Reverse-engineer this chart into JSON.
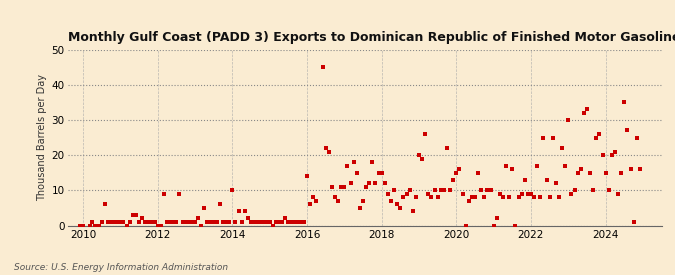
{
  "title": "Monthly Gulf Coast (PADD 3) Exports to Dominican Republic of Finished Motor Gasoline",
  "ylabel": "Thousand Barrels per Day",
  "source": "Source: U.S. Energy Information Administration",
  "background_color": "#faecd2",
  "marker_color": "#cc0000",
  "xlim_start": 2009.58,
  "xlim_end": 2025.5,
  "ylim": [
    0,
    50
  ],
  "yticks": [
    0,
    10,
    20,
    30,
    40,
    50
  ],
  "xticks": [
    2010,
    2012,
    2014,
    2016,
    2018,
    2020,
    2022,
    2024
  ],
  "data": [
    [
      2009.92,
      0.0
    ],
    [
      2010.0,
      0.0
    ],
    [
      2010.17,
      0.0
    ],
    [
      2010.25,
      1.0
    ],
    [
      2010.33,
      0.0
    ],
    [
      2010.42,
      0.0
    ],
    [
      2010.5,
      1.0
    ],
    [
      2010.58,
      6.0
    ],
    [
      2010.67,
      1.0
    ],
    [
      2010.75,
      1.0
    ],
    [
      2010.83,
      1.0
    ],
    [
      2010.92,
      1.0
    ],
    [
      2011.0,
      1.0
    ],
    [
      2011.08,
      1.0
    ],
    [
      2011.17,
      0.0
    ],
    [
      2011.25,
      1.0
    ],
    [
      2011.33,
      3.0
    ],
    [
      2011.42,
      3.0
    ],
    [
      2011.5,
      1.0
    ],
    [
      2011.58,
      2.0
    ],
    [
      2011.67,
      1.0
    ],
    [
      2011.75,
      1.0
    ],
    [
      2011.83,
      1.0
    ],
    [
      2011.92,
      1.0
    ],
    [
      2012.0,
      0.0
    ],
    [
      2012.08,
      0.0
    ],
    [
      2012.17,
      9.0
    ],
    [
      2012.25,
      1.0
    ],
    [
      2012.33,
      1.0
    ],
    [
      2012.42,
      1.0
    ],
    [
      2012.5,
      1.0
    ],
    [
      2012.58,
      9.0
    ],
    [
      2012.67,
      1.0
    ],
    [
      2012.75,
      1.0
    ],
    [
      2012.83,
      1.0
    ],
    [
      2012.92,
      1.0
    ],
    [
      2013.0,
      1.0
    ],
    [
      2013.08,
      2.0
    ],
    [
      2013.17,
      0.0
    ],
    [
      2013.25,
      5.0
    ],
    [
      2013.33,
      1.0
    ],
    [
      2013.42,
      1.0
    ],
    [
      2013.5,
      1.0
    ],
    [
      2013.58,
      1.0
    ],
    [
      2013.67,
      6.0
    ],
    [
      2013.75,
      1.0
    ],
    [
      2013.83,
      1.0
    ],
    [
      2013.92,
      1.0
    ],
    [
      2014.0,
      10.0
    ],
    [
      2014.08,
      1.0
    ],
    [
      2014.17,
      4.0
    ],
    [
      2014.25,
      1.0
    ],
    [
      2014.33,
      4.0
    ],
    [
      2014.42,
      2.0
    ],
    [
      2014.5,
      1.0
    ],
    [
      2014.58,
      1.0
    ],
    [
      2014.67,
      1.0
    ],
    [
      2014.75,
      1.0
    ],
    [
      2014.83,
      1.0
    ],
    [
      2014.92,
      1.0
    ],
    [
      2015.0,
      1.0
    ],
    [
      2015.08,
      0.0
    ],
    [
      2015.17,
      1.0
    ],
    [
      2015.25,
      1.0
    ],
    [
      2015.33,
      1.0
    ],
    [
      2015.42,
      2.0
    ],
    [
      2015.5,
      1.0
    ],
    [
      2015.58,
      1.0
    ],
    [
      2015.67,
      1.0
    ],
    [
      2015.75,
      1.0
    ],
    [
      2015.83,
      1.0
    ],
    [
      2015.92,
      1.0
    ],
    [
      2016.0,
      14.0
    ],
    [
      2016.08,
      6.0
    ],
    [
      2016.17,
      8.0
    ],
    [
      2016.25,
      7.0
    ],
    [
      2016.42,
      45.0
    ],
    [
      2016.5,
      22.0
    ],
    [
      2016.58,
      21.0
    ],
    [
      2016.67,
      11.0
    ],
    [
      2016.75,
      8.0
    ],
    [
      2016.83,
      7.0
    ],
    [
      2016.92,
      11.0
    ],
    [
      2017.0,
      11.0
    ],
    [
      2017.08,
      17.0
    ],
    [
      2017.17,
      12.0
    ],
    [
      2017.25,
      18.0
    ],
    [
      2017.33,
      15.0
    ],
    [
      2017.42,
      5.0
    ],
    [
      2017.5,
      7.0
    ],
    [
      2017.58,
      11.0
    ],
    [
      2017.67,
      12.0
    ],
    [
      2017.75,
      18.0
    ],
    [
      2017.83,
      12.0
    ],
    [
      2017.92,
      15.0
    ],
    [
      2018.0,
      15.0
    ],
    [
      2018.08,
      12.0
    ],
    [
      2018.17,
      9.0
    ],
    [
      2018.25,
      7.0
    ],
    [
      2018.33,
      10.0
    ],
    [
      2018.42,
      6.0
    ],
    [
      2018.5,
      5.0
    ],
    [
      2018.58,
      8.0
    ],
    [
      2018.67,
      9.0
    ],
    [
      2018.75,
      10.0
    ],
    [
      2018.83,
      4.0
    ],
    [
      2018.92,
      8.0
    ],
    [
      2019.0,
      20.0
    ],
    [
      2019.08,
      19.0
    ],
    [
      2019.17,
      26.0
    ],
    [
      2019.25,
      9.0
    ],
    [
      2019.33,
      8.0
    ],
    [
      2019.42,
      10.0
    ],
    [
      2019.5,
      8.0
    ],
    [
      2019.58,
      10.0
    ],
    [
      2019.67,
      10.0
    ],
    [
      2019.75,
      22.0
    ],
    [
      2019.83,
      10.0
    ],
    [
      2019.92,
      13.0
    ],
    [
      2020.0,
      15.0
    ],
    [
      2020.08,
      16.0
    ],
    [
      2020.17,
      9.0
    ],
    [
      2020.25,
      0.0
    ],
    [
      2020.33,
      7.0
    ],
    [
      2020.42,
      8.0
    ],
    [
      2020.5,
      8.0
    ],
    [
      2020.58,
      15.0
    ],
    [
      2020.67,
      10.0
    ],
    [
      2020.75,
      8.0
    ],
    [
      2020.83,
      10.0
    ],
    [
      2020.92,
      10.0
    ],
    [
      2021.0,
      0.0
    ],
    [
      2021.08,
      2.0
    ],
    [
      2021.17,
      9.0
    ],
    [
      2021.25,
      8.0
    ],
    [
      2021.33,
      17.0
    ],
    [
      2021.42,
      8.0
    ],
    [
      2021.5,
      16.0
    ],
    [
      2021.58,
      0.0
    ],
    [
      2021.67,
      8.0
    ],
    [
      2021.75,
      9.0
    ],
    [
      2021.83,
      13.0
    ],
    [
      2021.92,
      9.0
    ],
    [
      2022.0,
      9.0
    ],
    [
      2022.08,
      8.0
    ],
    [
      2022.17,
      17.0
    ],
    [
      2022.25,
      8.0
    ],
    [
      2022.33,
      25.0
    ],
    [
      2022.42,
      13.0
    ],
    [
      2022.5,
      8.0
    ],
    [
      2022.58,
      25.0
    ],
    [
      2022.67,
      12.0
    ],
    [
      2022.75,
      8.0
    ],
    [
      2022.83,
      22.0
    ],
    [
      2022.92,
      17.0
    ],
    [
      2023.0,
      30.0
    ],
    [
      2023.08,
      9.0
    ],
    [
      2023.17,
      10.0
    ],
    [
      2023.25,
      15.0
    ],
    [
      2023.33,
      16.0
    ],
    [
      2023.42,
      32.0
    ],
    [
      2023.5,
      33.0
    ],
    [
      2023.58,
      15.0
    ],
    [
      2023.67,
      10.0
    ],
    [
      2023.75,
      25.0
    ],
    [
      2023.83,
      26.0
    ],
    [
      2023.92,
      20.0
    ],
    [
      2024.0,
      15.0
    ],
    [
      2024.08,
      10.0
    ],
    [
      2024.17,
      20.0
    ],
    [
      2024.25,
      21.0
    ],
    [
      2024.33,
      9.0
    ],
    [
      2024.42,
      15.0
    ],
    [
      2024.5,
      35.0
    ],
    [
      2024.58,
      27.0
    ],
    [
      2024.67,
      16.0
    ],
    [
      2024.75,
      1.0
    ],
    [
      2024.83,
      25.0
    ],
    [
      2024.92,
      16.0
    ]
  ]
}
